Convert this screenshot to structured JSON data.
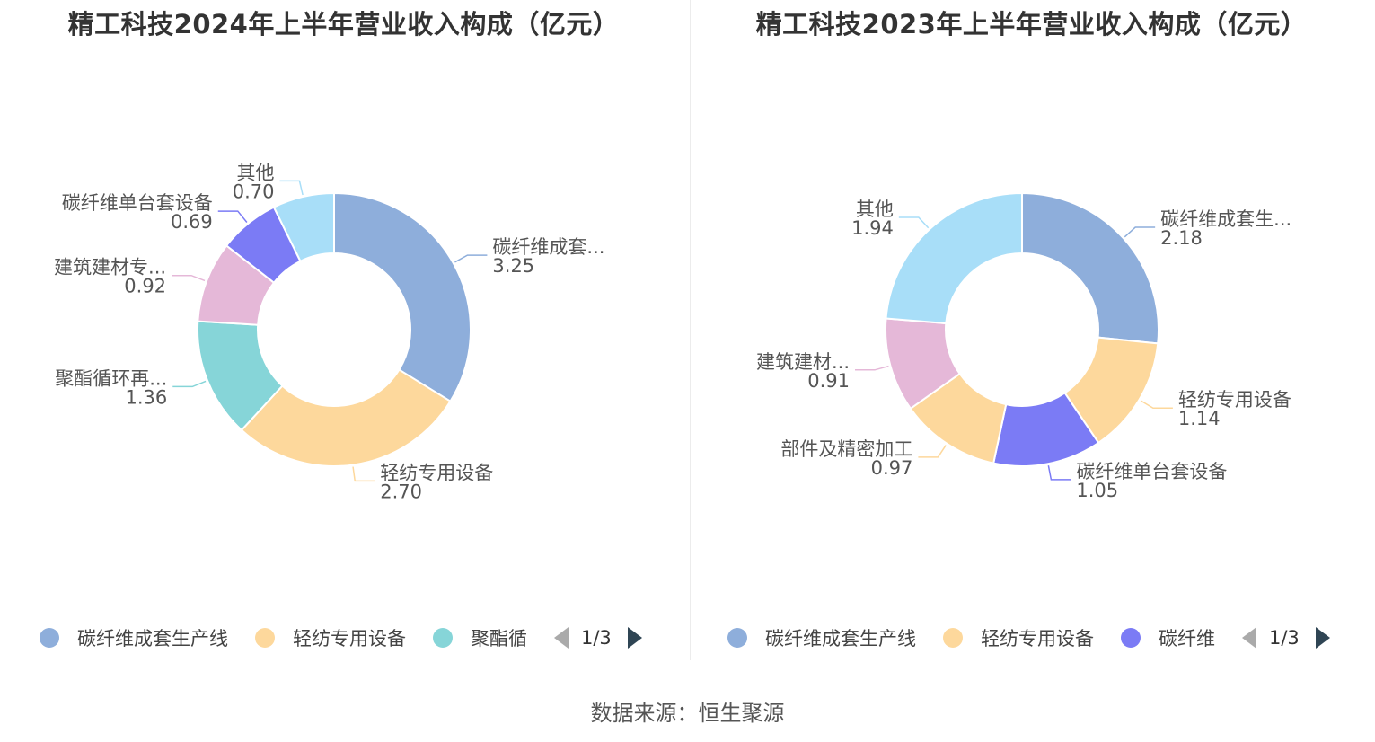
{
  "source_text": "数据来源：恒生聚源",
  "chart_data": [
    {
      "type": "pie",
      "donut": true,
      "title": "精工科技2024年上半年营业收入构成（亿元）",
      "slices": [
        {
          "label": "碳纤维成套...",
          "value_label": "3.25",
          "value": 3.25,
          "color": "#8eaedb"
        },
        {
          "label": "轻纺专用设备",
          "value_label": "2.70",
          "value": 2.7,
          "color": "#fdd89c"
        },
        {
          "label": "聚酯循环再...",
          "value_label": "1.36",
          "value": 1.36,
          "color": "#86d5d8"
        },
        {
          "label": "建筑建材专...",
          "value_label": "0.92",
          "value": 0.92,
          "color": "#e5b8d8"
        },
        {
          "label": "碳纤维单台套设备",
          "value_label": "0.69",
          "value": 0.69,
          "color": "#7b7bf5"
        },
        {
          "label": "其他",
          "value_label": "0.70",
          "value": 0.7,
          "color": "#a8def8"
        }
      ],
      "legend": {
        "items": [
          {
            "label": "碳纤维成套生产线",
            "color": "#8eaedb"
          },
          {
            "label": "轻纺专用设备",
            "color": "#fdd89c"
          },
          {
            "label": "聚酯循",
            "color": "#86d5d8"
          }
        ],
        "page": "1/3",
        "placement": "bottom"
      }
    },
    {
      "type": "pie",
      "donut": true,
      "title": "精工科技2023年上半年营业收入构成（亿元）",
      "slices": [
        {
          "label": "碳纤维成套生...",
          "value_label": "2.18",
          "value": 2.18,
          "color": "#8eaedb"
        },
        {
          "label": "轻纺专用设备",
          "value_label": "1.14",
          "value": 1.14,
          "color": "#fdd89c"
        },
        {
          "label": "碳纤维单台套设备",
          "value_label": "1.05",
          "value": 1.05,
          "color": "#7b7bf5"
        },
        {
          "label": "部件及精密加工",
          "value_label": "0.97",
          "value": 0.97,
          "color": "#fdd89c"
        },
        {
          "label": "建筑建材...",
          "value_label": "0.91",
          "value": 0.91,
          "color": "#e5b8d8"
        },
        {
          "label": "其他",
          "value_label": "1.94",
          "value": 1.94,
          "color": "#a8def8"
        }
      ],
      "legend": {
        "items": [
          {
            "label": "碳纤维成套生产线",
            "color": "#8eaedb"
          },
          {
            "label": "轻纺专用设备",
            "color": "#fdd89c"
          },
          {
            "label": "碳纤维",
            "color": "#7b7bf5"
          }
        ],
        "page": "1/3",
        "placement": "bottom"
      }
    }
  ]
}
